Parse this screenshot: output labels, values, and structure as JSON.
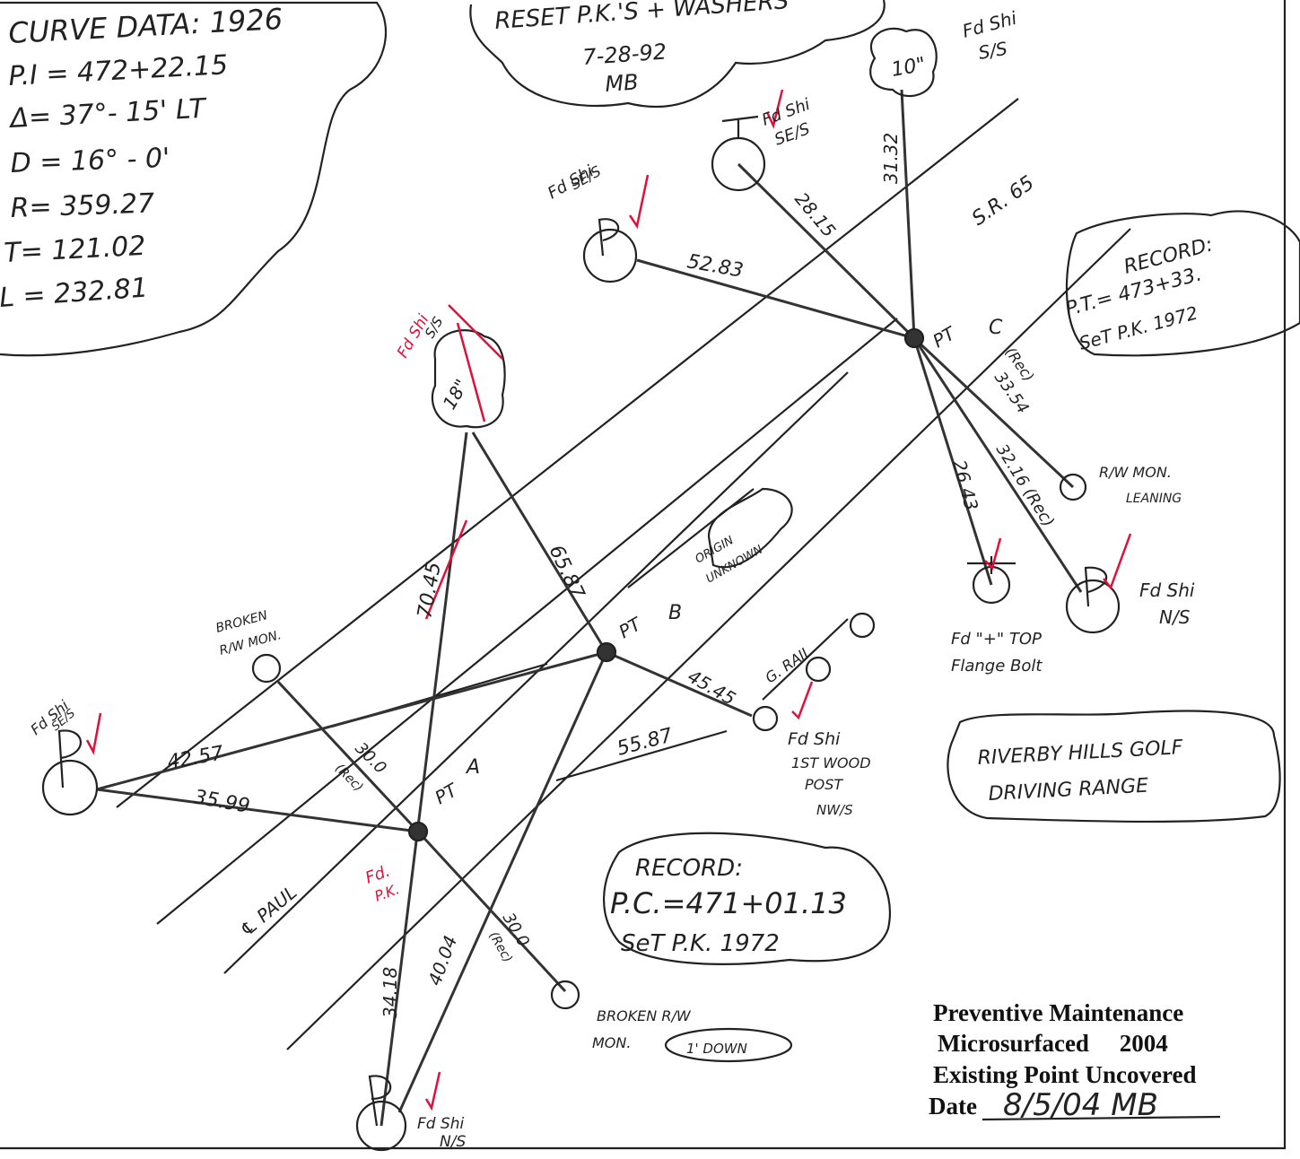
{
  "labels": [
    "CURVE DATA:  1926",
    "P.I = 472+22.15",
    "Δ= 37°- 15' LT",
    "D = 16° - 0'",
    "R= 359.27",
    "T= 121.02",
    "L = 232.81",
    "RESET P.K.'S + WASHERS",
    "7-28-92",
    "MB",
    "Fd Shi",
    "S/S",
    "10\"",
    "Fd Shi",
    "SE/S",
    "Fd Shi",
    "SE/S",
    "31.32",
    "28.15",
    "52.83",
    "S.R. 65",
    "PT",
    "C",
    "RECORD:",
    "P.T.= 473+33.",
    "SeT P.K. 1972",
    "(Rec)",
    "33.54",
    "R/W MON.",
    "LEANING",
    "26.43",
    "32.16 (Rec)",
    "Fd Shi",
    "N/S",
    "Fd \"+\" TOP",
    "Flange Bolt",
    "Fd Shi",
    "S/S",
    "18\"",
    "70.45",
    "65.87",
    "ORIGIN",
    "UNKNOWN",
    "PT",
    "B",
    "BROKEN",
    "R/W MON.",
    "G. RAIL",
    "45.45",
    "Fd Shi",
    "1ST WOOD",
    "POST",
    "NW/S",
    "55.87",
    "RIVERBY HILLS GOLF",
    "DRIVING RANGE",
    "Fd Shi",
    "SE/S",
    "42.57",
    "35.99",
    "30.0",
    "(Rec)",
    "PT",
    "A",
    "℄ PAUL",
    "Fd.",
    "P.K.",
    "RECORD:",
    "P.C.=471+01.13",
    "SeT P.K. 1972",
    "34.18",
    "40.04",
    "30.0",
    "(Rec)",
    "BROKEN R/W",
    "MON.",
    "1' DOWN",
    "Fd Shi",
    "N/S"
  ],
  "stamp": [
    "Preventive Maintenance",
    "Microsurfaced     2004",
    "Existing Point Uncovered"
  ],
  "date_label": "Date",
  "date_value": "8/5/04 MB"
}
